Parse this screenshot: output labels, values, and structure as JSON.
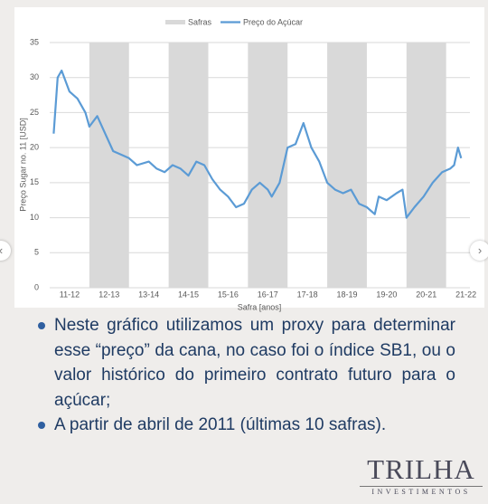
{
  "chart_data": {
    "type": "line",
    "y_label": "Preço Sugar no. 11 [USD]",
    "x_label": "Safra [anos]",
    "ylim": [
      0,
      35
    ],
    "yticks": [
      0,
      5,
      10,
      15,
      20,
      25,
      30,
      35
    ],
    "grid": true,
    "xlim": [
      0,
      10.6
    ],
    "xticks": [
      {
        "value": 0.5,
        "label": "11-12"
      },
      {
        "value": 1.5,
        "label": "12-13"
      },
      {
        "value": 2.5,
        "label": "13-14"
      },
      {
        "value": 3.5,
        "label": "14-15"
      },
      {
        "value": 4.5,
        "label": "15-16"
      },
      {
        "value": 5.5,
        "label": "16-17"
      },
      {
        "value": 6.5,
        "label": "17-18"
      },
      {
        "value": 7.5,
        "label": "18-19"
      },
      {
        "value": 8.5,
        "label": "19-20"
      },
      {
        "value": 9.5,
        "label": "20-21"
      },
      {
        "value": 10.5,
        "label": "21-22"
      }
    ],
    "series": [
      {
        "name": "Safras",
        "color": "#d9d9d9",
        "spans": [
          [
            1,
            2
          ],
          [
            3,
            4
          ],
          [
            5,
            6
          ],
          [
            7,
            8
          ],
          [
            9,
            10
          ]
        ]
      },
      {
        "name": "Preço do Açúcar",
        "color": "#5b9bd5",
        "x": [
          0.1,
          0.2,
          0.3,
          0.5,
          0.7,
          0.9,
          1.0,
          1.2,
          1.4,
          1.6,
          1.8,
          2.0,
          2.2,
          2.5,
          2.7,
          2.9,
          3.1,
          3.3,
          3.5,
          3.7,
          3.9,
          4.1,
          4.3,
          4.5,
          4.7,
          4.9,
          5.1,
          5.3,
          5.5,
          5.6,
          5.8,
          6.0,
          6.2,
          6.4,
          6.6,
          6.8,
          7.0,
          7.2,
          7.4,
          7.6,
          7.8,
          8.0,
          8.2,
          8.3,
          8.5,
          8.75,
          8.9,
          9.0,
          9.2,
          9.43,
          9.66,
          9.9,
          10.1,
          10.2,
          10.3,
          10.38
        ],
        "values": [
          22,
          30,
          31,
          28,
          27,
          25,
          23,
          24.5,
          22,
          19.5,
          19,
          18.5,
          17.5,
          18,
          17,
          16.5,
          17.5,
          17,
          16,
          18,
          17.5,
          15.5,
          14,
          13,
          11.5,
          12,
          14,
          15,
          14,
          13,
          15,
          20,
          20.5,
          23.5,
          20,
          18,
          15,
          14,
          13.5,
          14,
          12,
          11.5,
          10.5,
          13,
          12.5,
          13.5,
          14,
          10,
          11.5,
          13,
          15,
          16.5,
          17,
          17.5,
          20,
          18.5
        ]
      }
    ]
  },
  "notes": [
    "Neste gráfico utilizamos um proxy para determinar esse “preço” da cana, no caso foi o índice SB1, ou o valor histórico do primeiro contrato futuro para o açúcar;",
    "A partir de abril de 2011 (últimas 10 safras)."
  ],
  "logo": {
    "title": "TRILHA",
    "subtitle": "INVESTIMENTOS"
  }
}
